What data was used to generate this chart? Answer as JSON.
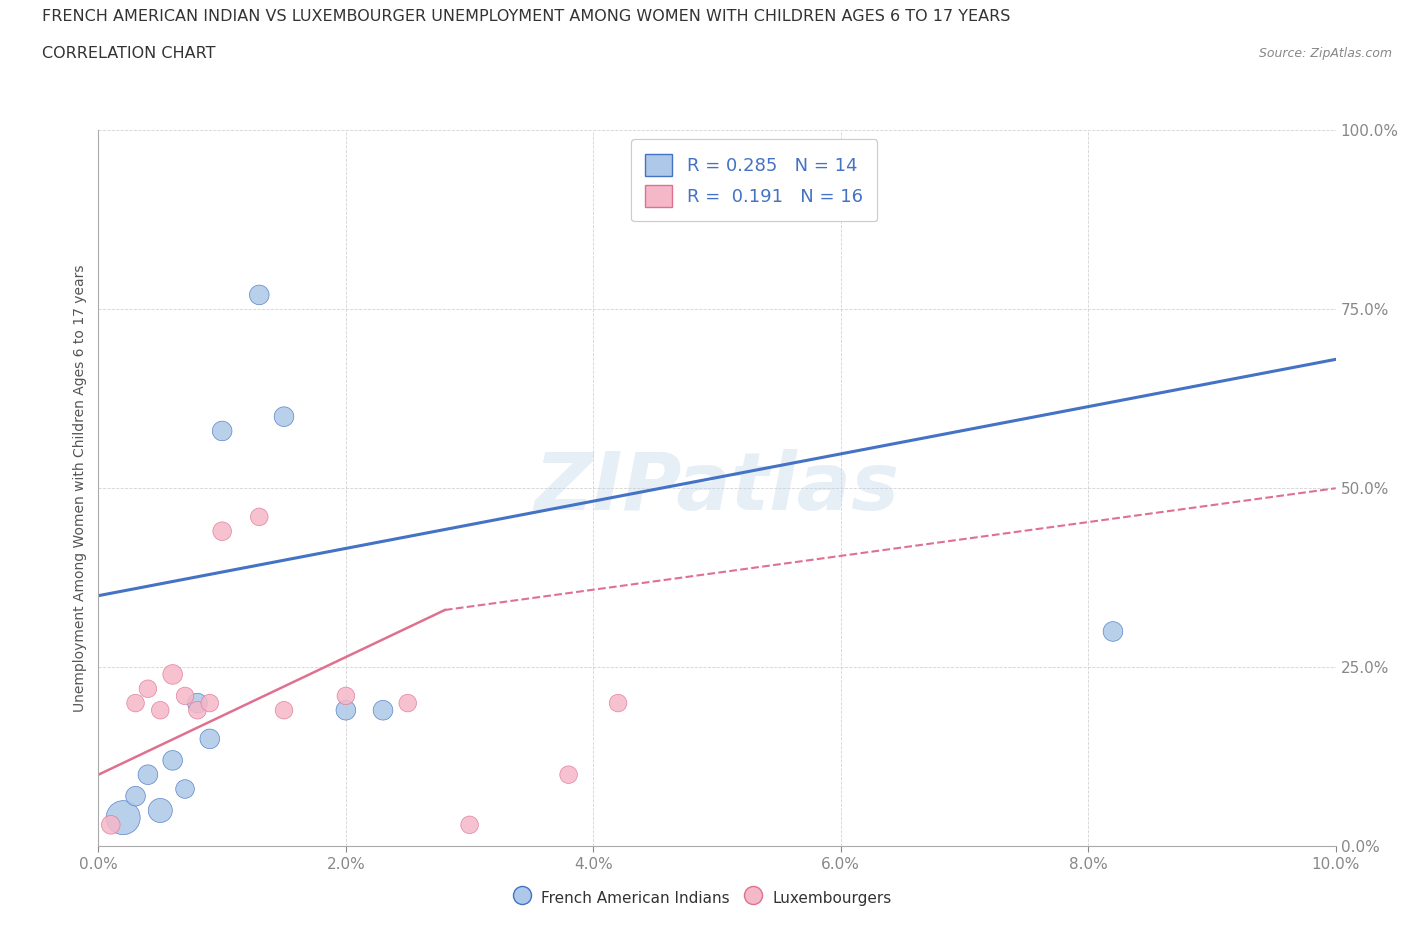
{
  "title_line1": "FRENCH AMERICAN INDIAN VS LUXEMBOURGER UNEMPLOYMENT AMONG WOMEN WITH CHILDREN AGES 6 TO 17 YEARS",
  "title_line2": "CORRELATION CHART",
  "source": "Source: ZipAtlas.com",
  "ylabel": "Unemployment Among Women with Children Ages 6 to 17 years",
  "xlim": [
    0.0,
    0.1
  ],
  "ylim": [
    0.0,
    1.0
  ],
  "xticks": [
    0.0,
    0.02,
    0.04,
    0.06,
    0.08,
    0.1
  ],
  "xtick_labels": [
    "0.0%",
    "2.0%",
    "4.0%",
    "6.0%",
    "8.0%",
    "10.0%"
  ],
  "yticks": [
    0.0,
    0.25,
    0.5,
    0.75,
    1.0
  ],
  "ytick_labels": [
    "0.0%",
    "25.0%",
    "50.0%",
    "75.0%",
    "100.0%"
  ],
  "blue_scatter_x": [
    0.002,
    0.003,
    0.004,
    0.005,
    0.006,
    0.007,
    0.008,
    0.009,
    0.01,
    0.013,
    0.015,
    0.02,
    0.082,
    0.023
  ],
  "blue_scatter_y": [
    0.04,
    0.07,
    0.1,
    0.05,
    0.12,
    0.08,
    0.2,
    0.15,
    0.58,
    0.77,
    0.6,
    0.19,
    0.3,
    0.19
  ],
  "blue_sizes": [
    600,
    200,
    200,
    300,
    200,
    180,
    200,
    200,
    200,
    200,
    200,
    200,
    200,
    200
  ],
  "pink_scatter_x": [
    0.001,
    0.003,
    0.004,
    0.005,
    0.006,
    0.007,
    0.008,
    0.009,
    0.01,
    0.013,
    0.015,
    0.02,
    0.025,
    0.03,
    0.038,
    0.042
  ],
  "pink_scatter_y": [
    0.03,
    0.2,
    0.22,
    0.19,
    0.24,
    0.21,
    0.19,
    0.2,
    0.44,
    0.46,
    0.19,
    0.21,
    0.2,
    0.03,
    0.1,
    0.2
  ],
  "pink_sizes": [
    180,
    160,
    160,
    160,
    200,
    160,
    160,
    160,
    180,
    160,
    160,
    160,
    160,
    160,
    160,
    160
  ],
  "blue_R": 0.285,
  "blue_N": 14,
  "pink_R": 0.191,
  "pink_N": 16,
  "blue_trendline": [
    0.35,
    0.68
  ],
  "pink_trendline_solid": [
    0.1,
    0.33
  ],
  "pink_trendline_dashed": [
    0.33,
    0.5
  ],
  "pink_solid_xend": 0.028,
  "blue_color": "#adc8e8",
  "blue_line_color": "#4472C4",
  "pink_color": "#f5b8c8",
  "pink_line_color": "#e07090",
  "watermark_text": "ZIPatlas",
  "background_color": "#ffffff",
  "grid_color": "#c8c8c8"
}
